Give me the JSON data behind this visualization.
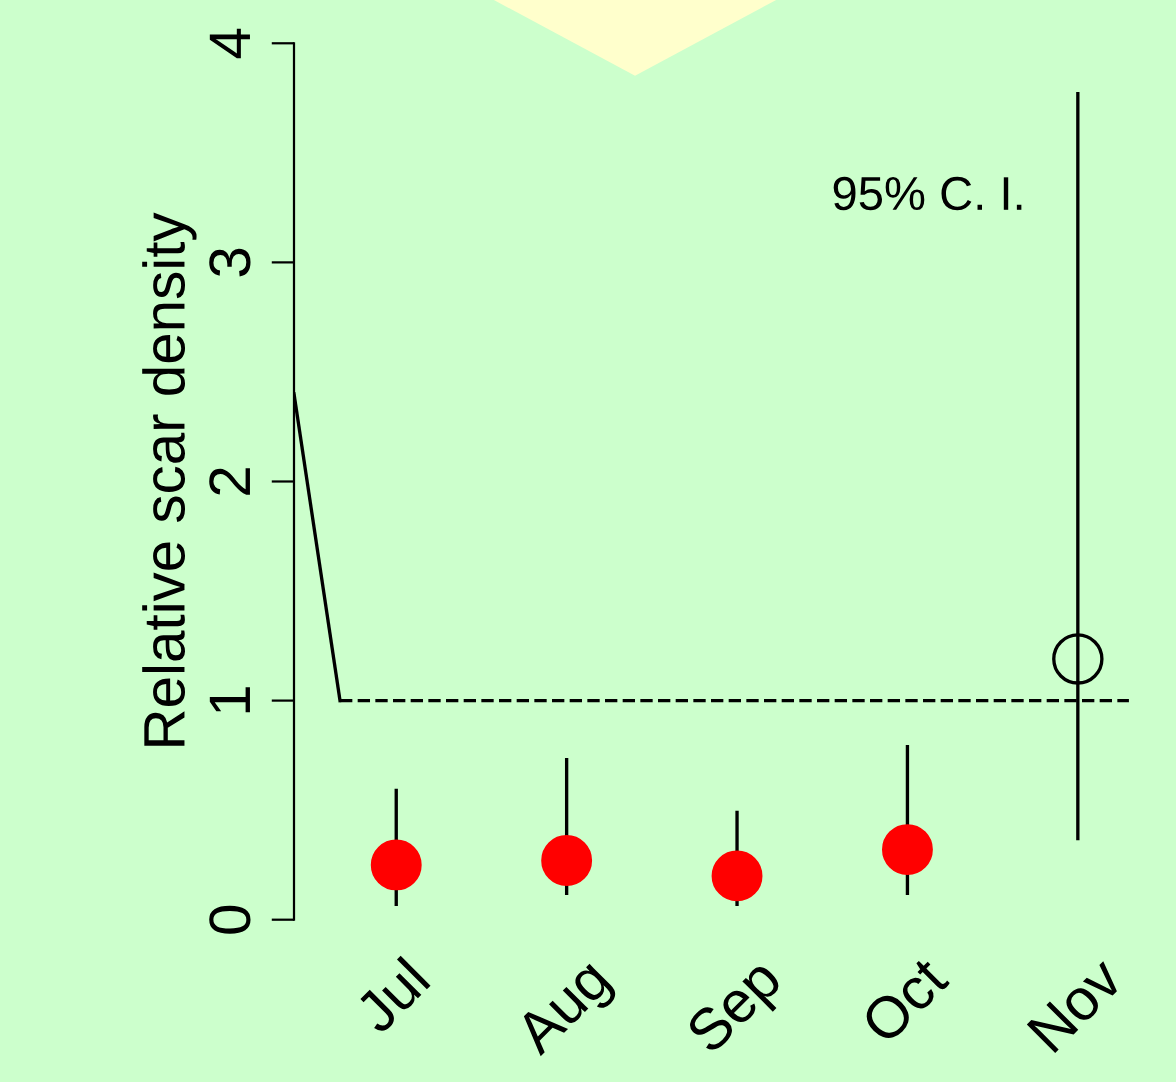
{
  "chart_data": {
    "type": "scatter",
    "ylabel": "Relative scar density",
    "categories": [
      "Jul",
      "Aug",
      "Sep",
      "Oct",
      "Nov"
    ],
    "values": [
      0.25,
      0.27,
      0.2,
      0.32,
      1.19
    ],
    "colors": [
      "#ff0000",
      "#ff0000",
      "#ff0000",
      "#ff0000",
      null
    ],
    "errors": [
      [
        0.07,
        0.59
      ],
      [
        0.12,
        0.73
      ],
      [
        0.07,
        0.49
      ],
      [
        0.12,
        0.79
      ],
      [
        0.37,
        3.77
      ]
    ],
    "ylim": [
      0,
      4
    ],
    "yticks": [
      0,
      1,
      2,
      3,
      4
    ],
    "marker": "circle",
    "grid": false,
    "legend": false,
    "ref_lines": [
      {
        "axis": "y",
        "value": 1,
        "line_style": "dashed",
        "color": "#000000"
      }
    ],
    "annotations": [
      "95% C. I."
    ]
  }
}
